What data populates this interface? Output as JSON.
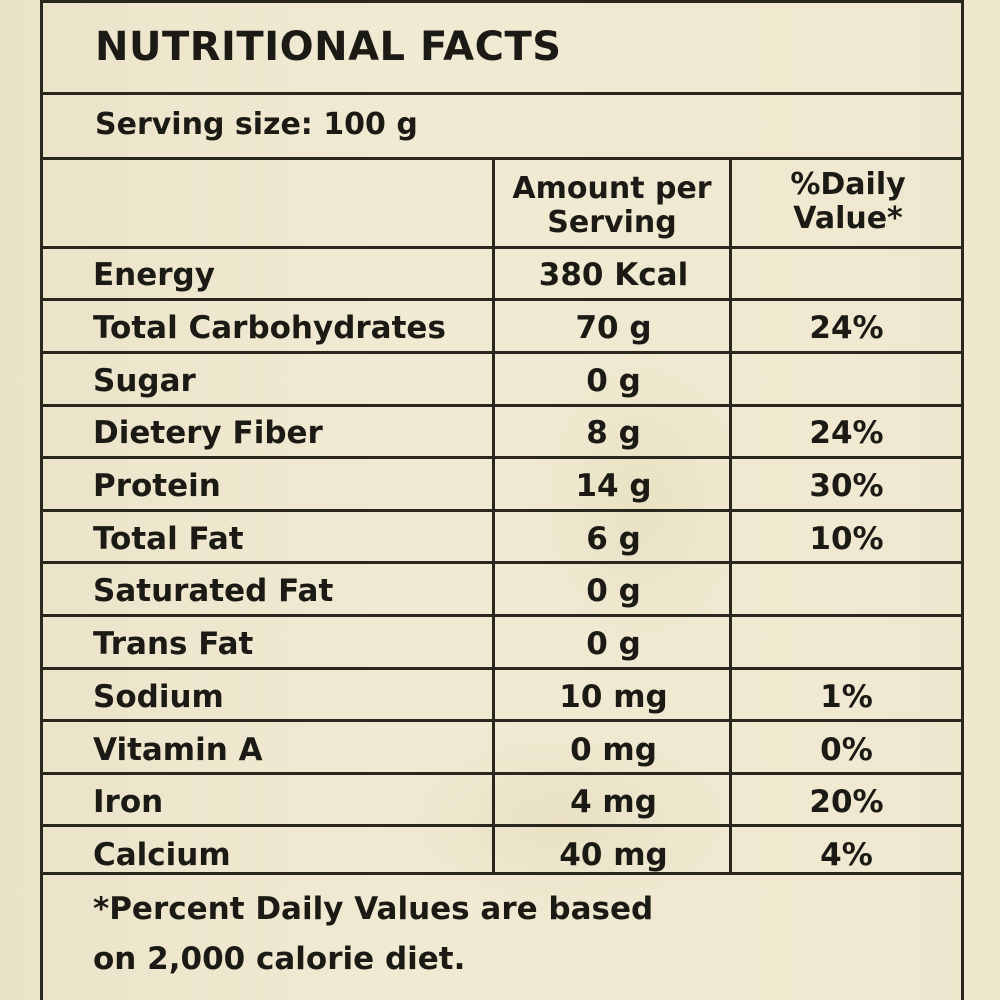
{
  "label": {
    "title": "NUTRITIONAL FACTS",
    "serving_size": "Serving size: 100 g",
    "column_headers": {
      "amount_line1": "Amount per",
      "amount_line2": "Serving",
      "daily_value_line1": "%Daily",
      "daily_value_line2": "Value*"
    },
    "rows": [
      {
        "name": "Energy",
        "amount": "380 Kcal",
        "daily_value": ""
      },
      {
        "name": "Total Carbohydrates",
        "amount": "70 g",
        "daily_value": "24%"
      },
      {
        "name": "Sugar",
        "amount": "0 g",
        "daily_value": ""
      },
      {
        "name": "Dietery Fiber",
        "amount": "8 g",
        "daily_value": "24%"
      },
      {
        "name": "Protein",
        "amount": "14 g",
        "daily_value": "30%"
      },
      {
        "name": "Total Fat",
        "amount": "6 g",
        "daily_value": "10%"
      },
      {
        "name": "Saturated Fat",
        "amount": "0 g",
        "daily_value": ""
      },
      {
        "name": "Trans Fat",
        "amount": "0 g",
        "daily_value": ""
      },
      {
        "name": "Sodium",
        "amount": "10 mg",
        "daily_value": "1%"
      },
      {
        "name": "Vitamin A",
        "amount": "0 mg",
        "daily_value": "0%"
      },
      {
        "name": "Iron",
        "amount": "4 mg",
        "daily_value": "20%"
      },
      {
        "name": "Calcium",
        "amount": "40 mg",
        "daily_value": "4%"
      }
    ],
    "footnote_line1": "*Percent Daily Values are based",
    "footnote_line2": "on 2,000 calorie diet."
  }
}
